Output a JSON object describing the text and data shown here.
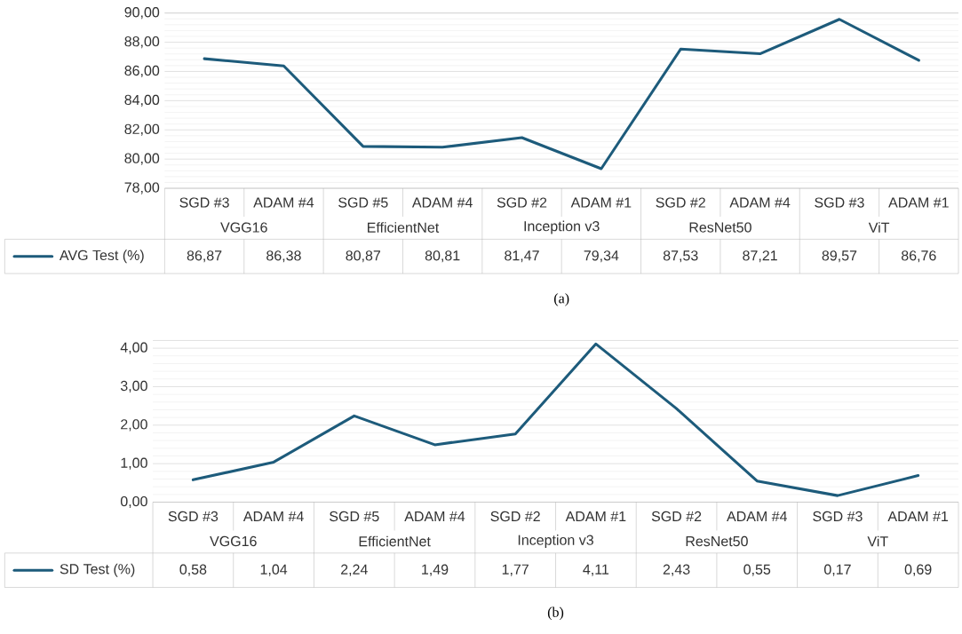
{
  "chart_data": [
    {
      "type": "line",
      "categories": [
        "SGD #3",
        "ADAM #4",
        "SGD #5",
        "ADAM #4",
        "SGD #2",
        "ADAM #1",
        "SGD #2",
        "ADAM #4",
        "SGD #3",
        "ADAM #1"
      ],
      "series": [
        {
          "name": "AVG Test (%)",
          "color": "#1d5b7b",
          "values": [
            86.87,
            86.38,
            80.87,
            80.81,
            81.47,
            79.34,
            87.53,
            87.21,
            89.57,
            86.76
          ],
          "value_labels": [
            "86,87",
            "86,38",
            "80,87",
            "80,81",
            "81,47",
            "79,34",
            "87,53",
            "87,21",
            "89,57",
            "86,76"
          ]
        }
      ],
      "ylim": [
        78,
        90
      ],
      "yticks": [
        {
          "value": 78,
          "label": "78,00"
        },
        {
          "value": 80,
          "label": "80,00"
        },
        {
          "value": 82,
          "label": "82,00"
        },
        {
          "value": 84,
          "label": "84,00"
        },
        {
          "value": 86,
          "label": "86,00"
        },
        {
          "value": 88,
          "label": "88,00"
        },
        {
          "value": 90,
          "label": "90,00"
        }
      ],
      "annotations": [
        "VGG16",
        "EfficientNet",
        "Inception v3",
        "ResNet50",
        "ViT",
        "(a)"
      ],
      "grid": "y",
      "legend": "bottom left",
      "marker": "none",
      "line_style": "solid"
    },
    {
      "type": "line",
      "categories": [
        "SGD #3",
        "ADAM #4",
        "SGD #5",
        "ADAM #4",
        "SGD #2",
        "ADAM #1",
        "SGD #2",
        "ADAM #4",
        "SGD #3",
        "ADAM #1"
      ],
      "series": [
        {
          "name": "SD Test (%)",
          "color": "#1d5b7b",
          "values": [
            0.58,
            1.04,
            2.24,
            1.49,
            1.77,
            4.11,
            2.43,
            0.55,
            0.17,
            0.69
          ],
          "value_labels": [
            "0,58",
            "1,04",
            "2,24",
            "1,49",
            "1,77",
            "4,11",
            "2,43",
            "0,55",
            "0,17",
            "0,69"
          ]
        }
      ],
      "ylim": [
        0,
        4.2
      ],
      "yticks": [
        {
          "value": 0,
          "label": "0,00"
        },
        {
          "value": 1,
          "label": "1,00"
        },
        {
          "value": 2,
          "label": "2,00"
        },
        {
          "value": 3,
          "label": "3,00"
        },
        {
          "value": 4,
          "label": "4,00"
        }
      ],
      "annotations": [
        "VGG16",
        "EfficientNet",
        "Inception v3",
        "ResNet50",
        "ViT",
        "(b)"
      ],
      "grid": "y",
      "legend": "bottom left",
      "marker": "none",
      "line_style": "solid"
    }
  ]
}
